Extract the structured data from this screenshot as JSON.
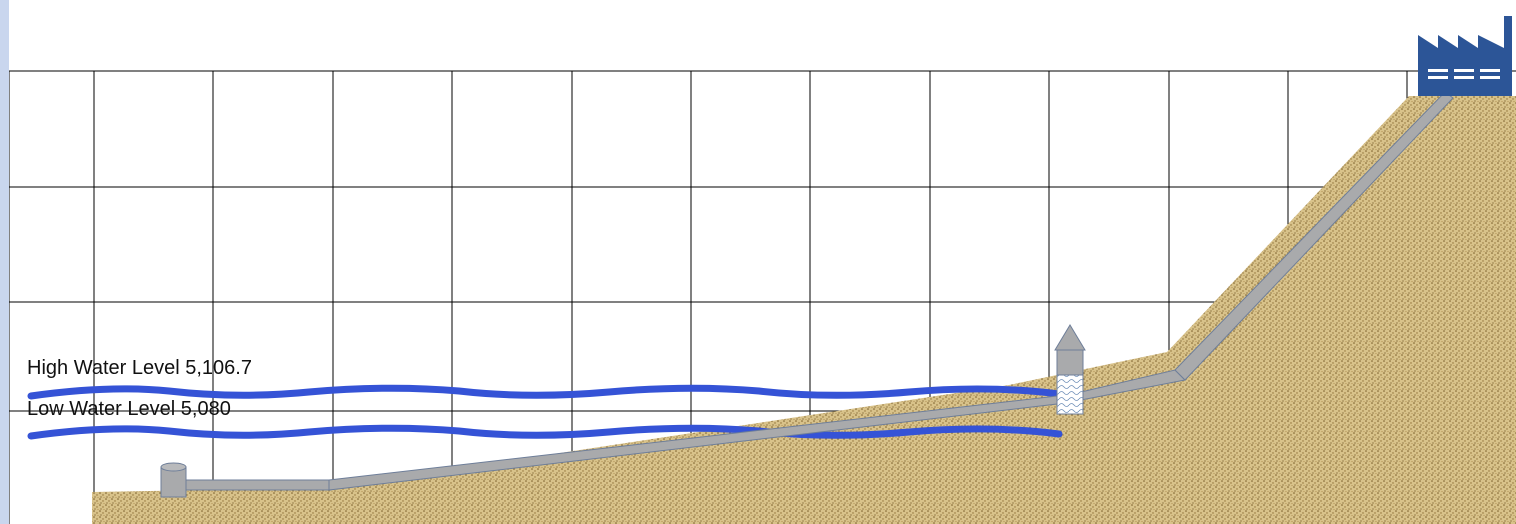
{
  "diagram": {
    "labels": {
      "high_water": "High Water Level 5,106.7",
      "low_water": "Low Water Level 5,080"
    },
    "colors": {
      "frame": "#c9d6ee",
      "water": "#3553d6",
      "ground": "#d8c28a",
      "ground_speckle": "#7a5e2a",
      "pipe": "#a9aaac",
      "pipe_edge": "#6e7e99",
      "factory": "#2c5597",
      "grid": "#000000"
    },
    "components": [
      "intake-tank",
      "intake-pipe",
      "pump-tower",
      "pipeline",
      "factory"
    ],
    "icons": [
      "factory-icon"
    ]
  }
}
